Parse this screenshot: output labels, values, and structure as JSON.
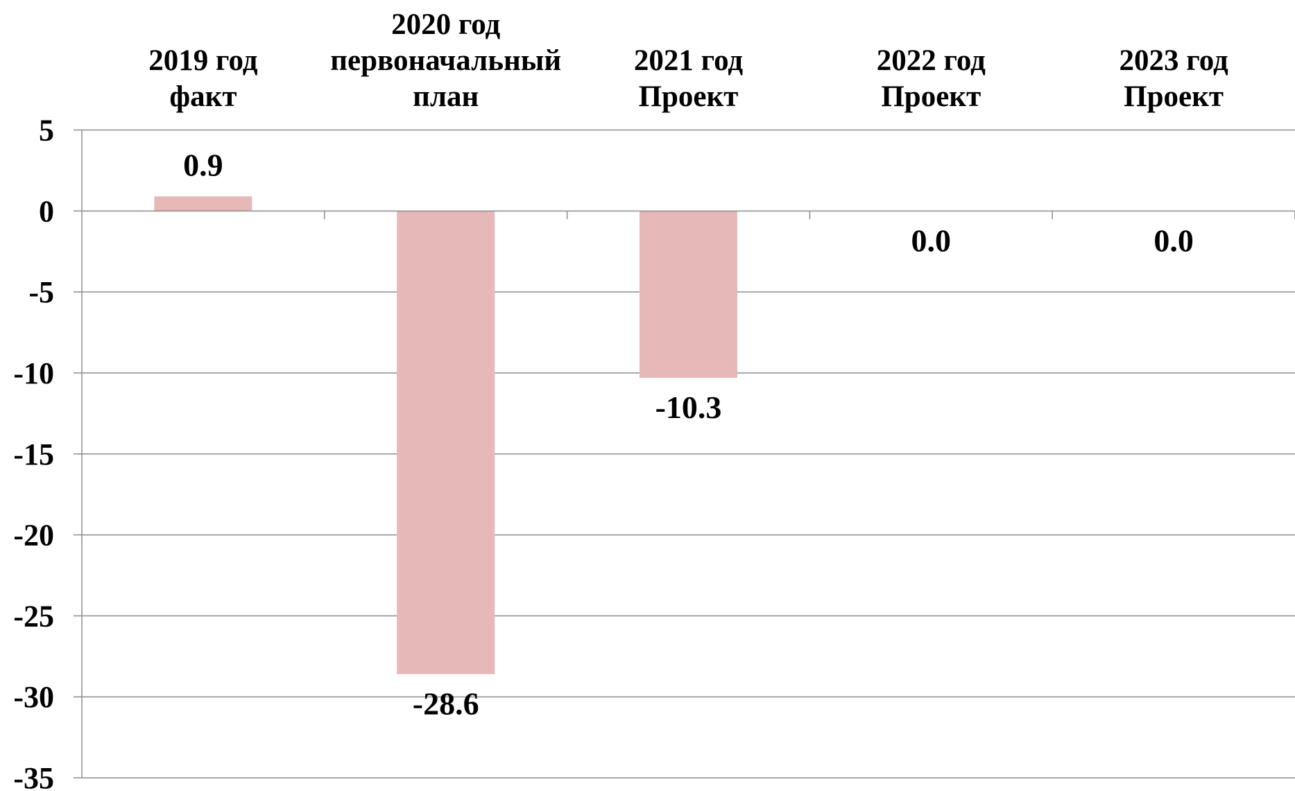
{
  "chart_data": {
    "type": "bar",
    "title": "",
    "xlabel": "",
    "ylabel": "",
    "categories": [
      [
        "2019 год",
        "факт"
      ],
      [
        "2020 год",
        "первоначальный",
        "план"
      ],
      [
        "2021 год",
        "Проект"
      ],
      [
        "2022 год",
        "Проект"
      ],
      [
        "2023 год",
        "Проект"
      ]
    ],
    "values": [
      0.9,
      -28.6,
      -10.3,
      0.0,
      0.0
    ],
    "data_labels": [
      "0.9",
      "-28.6",
      "-10.3",
      "0.0",
      "0.0"
    ],
    "ylim": [
      -35,
      5
    ],
    "yticks": [
      5,
      0,
      -5,
      -10,
      -15,
      -20,
      -25,
      -30,
      -35
    ],
    "ytick_labels": [
      "5",
      "0",
      "-5",
      "-10",
      "-15",
      "-20",
      "-25",
      "-30",
      "-35"
    ],
    "grid": true,
    "legend": "none",
    "x_axis_position": "top",
    "bar_color": "#E6B8B7",
    "grid_color": "#8C8C8C"
  }
}
